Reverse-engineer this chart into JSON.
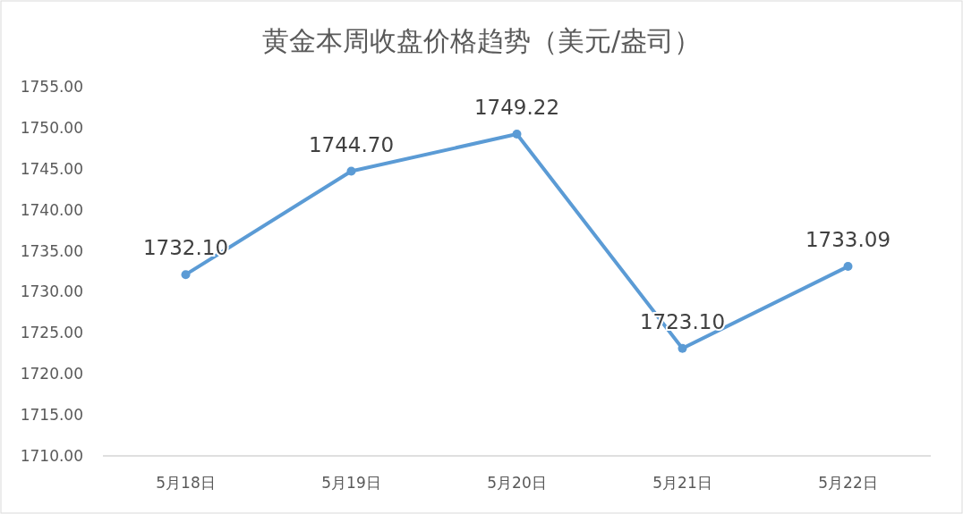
{
  "chart_data": {
    "type": "line",
    "title": "黄金本周收盘价格趋势（美元/盎司）",
    "categories": [
      "5月18日",
      "5月19日",
      "5月20日",
      "5月21日",
      "5月22日"
    ],
    "series": [
      {
        "color": "#5b9bd5",
        "values": [
          1732.1,
          1744.7,
          1749.22,
          1723.1,
          1733.09
        ],
        "value_labels": [
          "1732.10",
          "1744.70",
          "1749.22",
          "1723.10",
          "1733.09"
        ]
      }
    ],
    "ylim": [
      1710,
      1755
    ],
    "yticks": [
      {
        "value": 1710,
        "label": "1710.00"
      },
      {
        "value": 1715,
        "label": "1715.00"
      },
      {
        "value": 1720,
        "label": "1720.00"
      },
      {
        "value": 1725,
        "label": "1725.00"
      },
      {
        "value": 1730,
        "label": "1730.00"
      },
      {
        "value": 1735,
        "label": "1735.00"
      },
      {
        "value": 1740,
        "label": "1740.00"
      },
      {
        "value": 1745,
        "label": "1745.00"
      },
      {
        "value": 1750,
        "label": "1750.00"
      },
      {
        "value": 1755,
        "label": "1755.00"
      }
    ],
    "grid": false,
    "marker": "circle",
    "line_style": "solid"
  }
}
